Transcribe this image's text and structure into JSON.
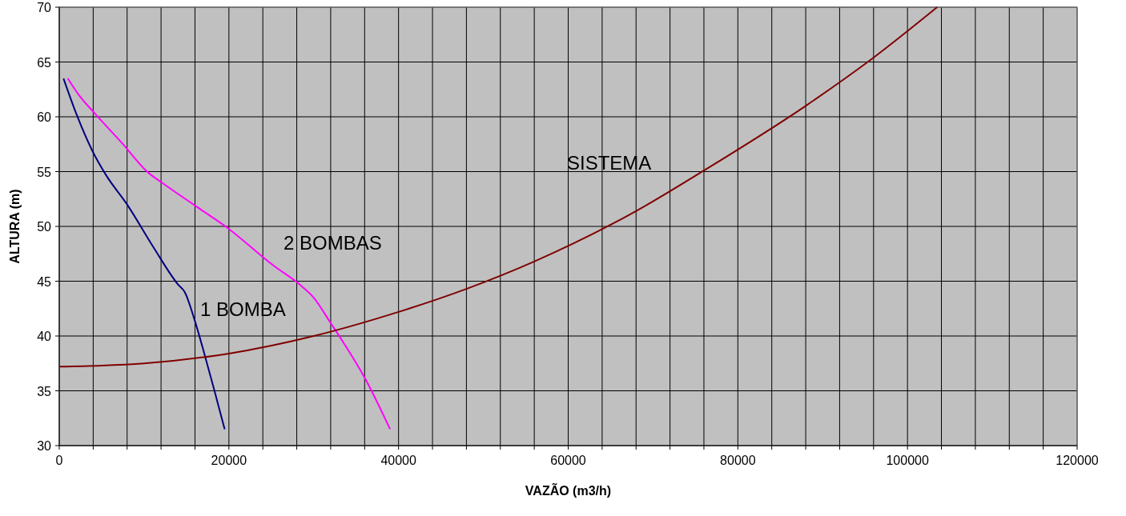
{
  "chart_data": {
    "type": "line",
    "xlabel": "VAZÃO (m3/h)",
    "ylabel": "ALTURA (m)",
    "xlim": [
      0,
      120000
    ],
    "ylim": [
      30,
      70
    ],
    "xticks": [
      0,
      {
        "value": 4000,
        "label": null
      },
      {
        "value": 8000,
        "label": null
      },
      {
        "value": 12000,
        "label": null
      },
      {
        "value": 16000,
        "label": null
      },
      20000,
      {
        "value": 24000,
        "label": null
      },
      {
        "value": 28000,
        "label": null
      },
      {
        "value": 32000,
        "label": null
      },
      {
        "value": 36000,
        "label": null
      },
      40000,
      {
        "value": 44000,
        "label": null
      },
      {
        "value": 48000,
        "label": null
      },
      {
        "value": 52000,
        "label": null
      },
      {
        "value": 56000,
        "label": null
      },
      60000,
      {
        "value": 64000,
        "label": null
      },
      {
        "value": 68000,
        "label": null
      },
      {
        "value": 72000,
        "label": null
      },
      {
        "value": 76000,
        "label": null
      },
      80000,
      {
        "value": 84000,
        "label": null
      },
      {
        "value": 88000,
        "label": null
      },
      {
        "value": 92000,
        "label": null
      },
      {
        "value": 96000,
        "label": null
      },
      100000,
      {
        "value": 104000,
        "label": null
      },
      {
        "value": 108000,
        "label": null
      },
      {
        "value": 112000,
        "label": null
      },
      {
        "value": 116000,
        "label": null
      },
      120000
    ],
    "yticks": [
      30,
      35,
      40,
      45,
      50,
      55,
      60,
      65,
      70
    ],
    "grid": true,
    "legend": false,
    "marker": "none",
    "line_style": "solid",
    "series": [
      {
        "name": "1 BOMBA",
        "color": "#000080",
        "x": [
          500,
          2000,
          3900,
          5500,
          8000,
          11100,
          14000,
          14800,
          15900,
          17100,
          18400,
          19500
        ],
        "values": [
          63.5,
          60.3,
          56.9,
          54.7,
          52.0,
          48.1,
          44.7,
          44.0,
          41.6,
          38.4,
          34.7,
          31.5
        ]
      },
      {
        "name": "2 BOMBAS",
        "color": "#ff00ff",
        "x": [
          1000,
          2300,
          4200,
          7400,
          10500,
          12100,
          16200,
          19600,
          25300,
          28500,
          30000,
          31900,
          33500,
          36000,
          39000
        ],
        "values": [
          63.5,
          62.0,
          60.3,
          57.6,
          54.9,
          54.0,
          51.8,
          50.0,
          46.4,
          44.6,
          43.5,
          41.3,
          39.4,
          36.2,
          31.5
        ]
      },
      {
        "name": "SISTEMA",
        "color": "#800000",
        "x": [
          0,
          5000,
          10000,
          20000,
          30000,
          40000,
          48000,
          56000,
          68000,
          76000,
          88000,
          96000,
          103500
        ],
        "values": [
          37.2,
          37.3,
          37.5,
          38.4,
          40.0,
          42.2,
          44.3,
          46.8,
          51.4,
          55.1,
          61.0,
          65.4,
          70
        ]
      }
    ]
  }
}
